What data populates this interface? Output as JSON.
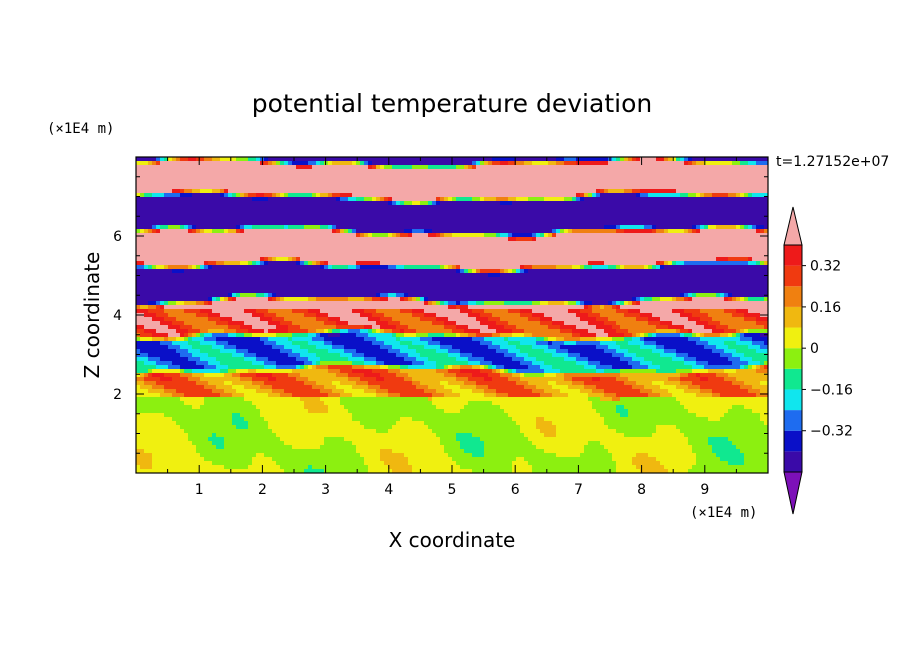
{
  "chart_data": {
    "type": "heatmap",
    "title": "potential temperature deviation",
    "xlabel": "X coordinate",
    "ylabel": "Z coordinate",
    "x_unit": "(×1E4 m)",
    "y_unit": "(×1E4 m)",
    "time_label": "t=1.27152e+07",
    "xlim": [
      0,
      10
    ],
    "ylim": [
      0,
      8
    ],
    "x_ticks": [
      1,
      2,
      3,
      4,
      5,
      6,
      7,
      8,
      9
    ],
    "y_ticks": [
      2,
      4,
      6
    ],
    "colorbar": {
      "levels": [
        -0.48,
        -0.4,
        -0.32,
        -0.24,
        -0.16,
        -0.08,
        0,
        0.08,
        0.16,
        0.24,
        0.32,
        0.4
      ],
      "labels": [
        "0.32",
        "0.16",
        "0",
        "−0.16",
        "−0.32"
      ],
      "label_values": [
        0.32,
        0.16,
        0,
        -0.16,
        -0.32
      ],
      "colors": [
        "#7d10b8",
        "#3a0aa8",
        "#0a10c8",
        "#1e6cf0",
        "#10e6ee",
        "#10e890",
        "#8cf010",
        "#f0f010",
        "#f0b810",
        "#f08010",
        "#f03a10",
        "#ee1a1a",
        "#f4a8a8"
      ]
    },
    "regions": [
      {
        "z_range": [
          0,
          1.9
        ],
        "description_values": [
          -0.08,
          0.08
        ],
        "pattern": "smooth mixed layer"
      },
      {
        "z_range": [
          1.9,
          8
        ],
        "description_values": [
          -0.48,
          0.48
        ],
        "pattern": "stratified alternating bands"
      }
    ]
  }
}
